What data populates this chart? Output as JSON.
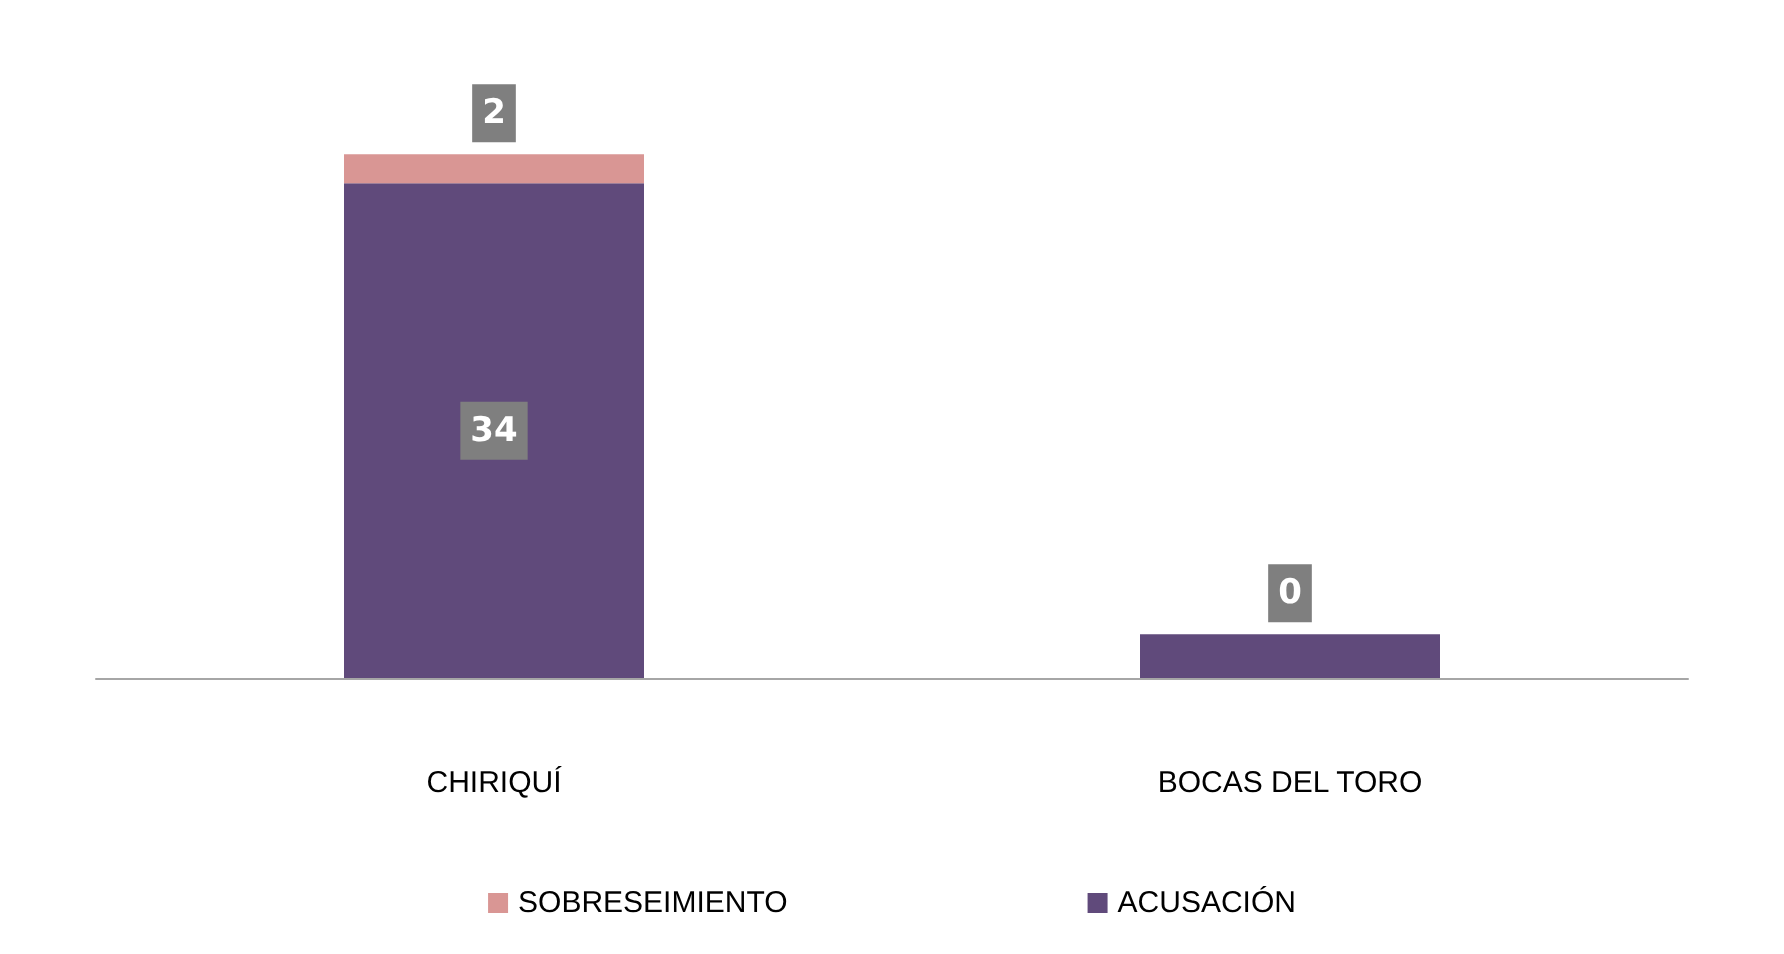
{
  "chart_data": {
    "type": "bar",
    "stacked": true,
    "categories": [
      "CHIRIQUÍ",
      "BOCAS DEL TORO"
    ],
    "series": [
      {
        "name": "ACUSACIÓN",
        "color": "#604a7b",
        "values": [
          34,
          3
        ],
        "value_labels": [
          "34",
          null
        ]
      },
      {
        "name": "SOBRESEIMIENTO",
        "color": "#d99694",
        "values": [
          2,
          0
        ],
        "value_labels": [
          "2",
          "0"
        ]
      }
    ],
    "legend": "bottom",
    "grid": false
  }
}
